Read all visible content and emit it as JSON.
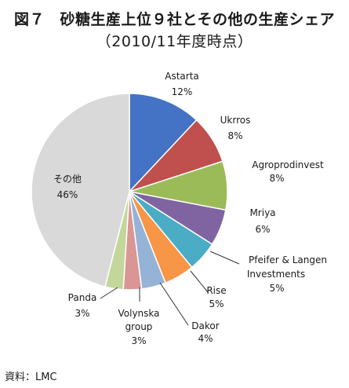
{
  "title_line1": "図７　砂糖生産上位９社とその他の生産シェア",
  "title_line2": "（2010/11年度時点）",
  "source": "資料：LMC",
  "chart_data": {
    "type": "pie",
    "title": "図７　砂糖生産上位９社とその他の生産シェア（2010/11年度時点）",
    "slices": [
      {
        "name": "Astarta",
        "value": 12,
        "label": "12%",
        "color": "#4472C4"
      },
      {
        "name": "Ukrros",
        "value": 8,
        "label": "8%",
        "color": "#C0504D"
      },
      {
        "name": "Agroprodinvest",
        "value": 8,
        "label": "8%",
        "color": "#9BBB59"
      },
      {
        "name": "Mriya",
        "value": 6,
        "label": "6%",
        "color": "#8064A2"
      },
      {
        "name": "Pfeifer & Langen Investments",
        "value": 5,
        "label": "5%",
        "color": "#4BACC6"
      },
      {
        "name": "Rise",
        "value": 5,
        "label": "5%",
        "color": "#F79646"
      },
      {
        "name": "Dakor",
        "value": 4,
        "label": "4%",
        "color": "#95B3D7"
      },
      {
        "name": "Volynska group",
        "value": 3,
        "label": "3%",
        "color": "#DA9694"
      },
      {
        "name": "Panda",
        "value": 3,
        "label": "3%",
        "color": "#C4D79B"
      },
      {
        "name": "その他",
        "value": 46,
        "label": "46%",
        "color": "#D9D9D9"
      }
    ]
  }
}
